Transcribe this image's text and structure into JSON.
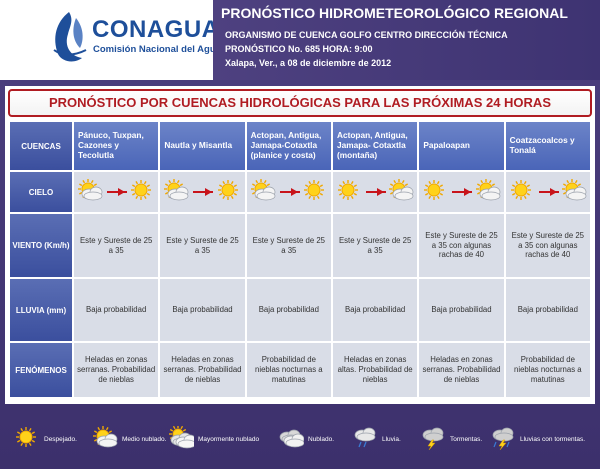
{
  "header": {
    "logo_text": "CONAGUA",
    "logo_subtitle": "Comisión Nacional del Agua",
    "title": "PRONÓSTICO HIDROMETEOROLÓGICO REGIONAL",
    "organism": "ORGANISMO DE CUENCA GOLFO CENTRO  DIRECCIÓN TÉCNICA",
    "forecast_number": "PRONÓSTICO No. 685  HORA: 9:00",
    "date_place": "Xalapa, Ver., a 08 de diciembre de 2012"
  },
  "banner": "PRONÓSTICO POR CUENCAS HIDROLÓGICAS PARA LAS PRÓXIMAS 24 HORAS",
  "rows": {
    "cuencas": "CUENCAS",
    "cielo": "CIELO",
    "viento": "VIENTO (Km/h)",
    "lluvia": "LLUVIA (mm)",
    "fenomenos": "FENÓMENOS"
  },
  "basins": [
    {
      "name": "Pánuco, Tuxpan, Cazones y Tecolutla",
      "sky_from": "medio-nublado",
      "sky_to": "despejado",
      "viento": "Este y Sureste de 25 a 35",
      "lluvia": "Baja probabilidad",
      "fenomenos": "Heladas en zonas serranas. Probabilidad de nieblas"
    },
    {
      "name": "Nautla y Misantla",
      "sky_from": "medio-nublado",
      "sky_to": "despejado",
      "viento": "Este y Sureste de 25 a 35",
      "lluvia": "Baja probabilidad",
      "fenomenos": "Heladas en zonas serranas. Probabilidad de nieblas"
    },
    {
      "name": "Actopan, Antigua, Jamapa-Cotaxtla (planice y costa)",
      "sky_from": "medio-nublado",
      "sky_to": "despejado",
      "viento": "Este y Sureste de 25 a 35",
      "lluvia": "Baja probabilidad",
      "fenomenos": "Probabilidad de nieblas nocturnas a matutinas"
    },
    {
      "name": "Actopan, Antigua, Jamapa- Cotaxtla (montaña)",
      "sky_from": "despejado",
      "sky_to": "medio-nublado",
      "viento": "Este y Sureste de 25 a 35",
      "lluvia": "Baja probabilidad",
      "fenomenos": "Heladas en zonas altas. Probabilidad de nieblas"
    },
    {
      "name": "Papaloapan",
      "sky_from": "despejado",
      "sky_to": "medio-nublado",
      "viento": "Este y Sureste de 25 a 35 con algunas rachas de 40",
      "lluvia": "Baja probabilidad",
      "fenomenos": "Heladas en zonas serranas. Probabilidad de nieblas"
    },
    {
      "name": "Coatzacoalcos y Tonalá",
      "sky_from": "despejado",
      "sky_to": "medio-nublado",
      "viento": "Este y Sureste de 25 a 35 con algunas rachas de 40",
      "lluvia": "Baja probabilidad",
      "fenomenos": "Probabilidad de nieblas nocturnas a matutinas"
    }
  ],
  "legend": [
    {
      "icon": "despejado",
      "label": "Despejado."
    },
    {
      "icon": "medio-nublado",
      "label": "Medio nublado."
    },
    {
      "icon": "mayormente-nublado",
      "label": "Mayormente nublado"
    },
    {
      "icon": "nublado",
      "label": "Nublado."
    },
    {
      "icon": "lluvia",
      "label": "Lluvia."
    },
    {
      "icon": "tormentas",
      "label": "Tormentas."
    },
    {
      "icon": "lluvias-con-tormentas",
      "label": "Lluvias con tormentas."
    }
  ],
  "colors": {
    "frame": "#4a3d7c",
    "header_band": "#4e4180",
    "banner_red": "#b01c22",
    "row_header_blue": "#3b4f9e",
    "cell_gray": "#d9dde7",
    "logo_blue": "#1e4f9a"
  }
}
